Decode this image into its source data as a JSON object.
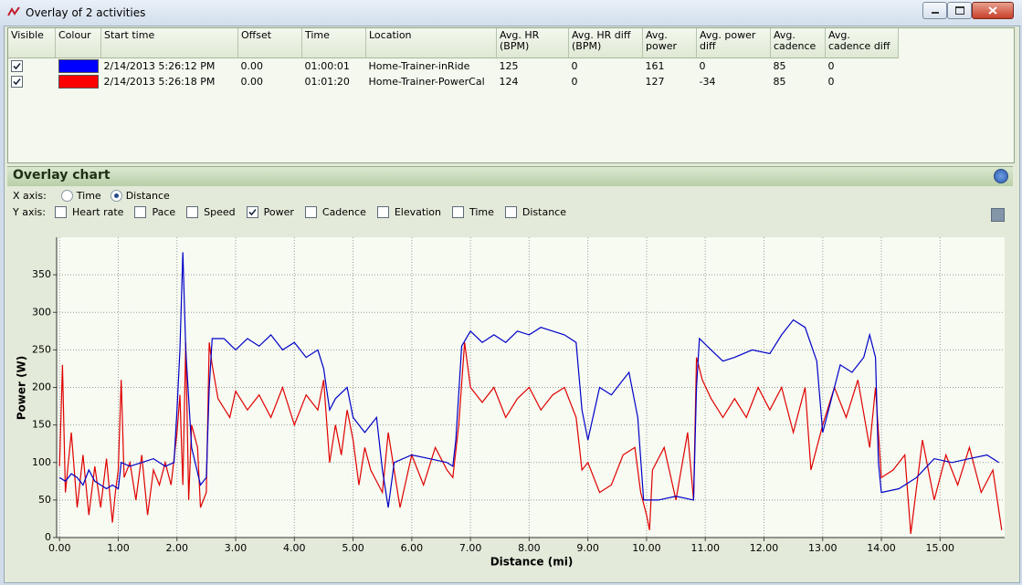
{
  "window": {
    "title": "Overlay of 2 activities"
  },
  "table": {
    "columns": [
      "Visible",
      "Colour",
      "Start time",
      "Offset",
      "Time",
      "Location",
      "Avg. HR (BPM)",
      "Avg. HR diff (BPM)",
      "Avg. power",
      "Avg. power diff",
      "Avg. cadence",
      "Avg. cadence diff"
    ],
    "rows": [
      {
        "visible": true,
        "color": "#0000ff",
        "cells": [
          "2/14/2013 5:26:12 PM",
          "0.00",
          "01:00:01",
          "Home-Trainer-inRide",
          "125",
          "0",
          "161",
          "0",
          "85",
          "0"
        ]
      },
      {
        "visible": true,
        "color": "#ff0000",
        "cells": [
          "2/14/2013 5:26:18 PM",
          "0.00",
          "01:01:20",
          "Home-Trainer-PowerCal",
          "124",
          "0",
          "127",
          "-34",
          "85",
          "0"
        ]
      }
    ]
  },
  "overlay": {
    "title": "Overlay chart",
    "x_axis": {
      "label": "X axis:",
      "options": [
        {
          "label": "Time",
          "selected": false
        },
        {
          "label": "Distance",
          "selected": true
        }
      ]
    },
    "y_axis": {
      "label": "Y axis:",
      "options": [
        {
          "label": "Heart rate",
          "checked": false
        },
        {
          "label": "Pace",
          "checked": false
        },
        {
          "label": "Speed",
          "checked": false
        },
        {
          "label": "Power",
          "checked": true
        },
        {
          "label": "Cadence",
          "checked": false
        },
        {
          "label": "Elevation",
          "checked": false
        },
        {
          "label": "Time",
          "checked": false
        },
        {
          "label": "Distance",
          "checked": false
        }
      ]
    }
  },
  "chart_data": {
    "type": "line",
    "x_label": "Distance (mi)",
    "y_label": "Power (W)",
    "xlim": [
      -0.05,
      16.1
    ],
    "ylim": [
      0,
      400
    ],
    "xticks": [
      {
        "value": 0,
        "label": "0.00"
      },
      {
        "value": 1,
        "label": "1.00"
      },
      {
        "value": 2,
        "label": "2.00"
      },
      {
        "value": 3,
        "label": "3.00"
      },
      {
        "value": 4,
        "label": "4.00"
      },
      {
        "value": 5,
        "label": "5.00"
      },
      {
        "value": 6,
        "label": "6.00"
      },
      {
        "value": 7,
        "label": "7.00"
      },
      {
        "value": 8,
        "label": "8.00"
      },
      {
        "value": 9,
        "label": "9.00"
      },
      {
        "value": 10,
        "label": "10.00"
      },
      {
        "value": 11,
        "label": "11.00"
      },
      {
        "value": 12,
        "label": "12.00"
      },
      {
        "value": 13,
        "label": "13.00"
      },
      {
        "value": 14,
        "label": "14.00"
      },
      {
        "value": 15,
        "label": "15.00"
      }
    ],
    "yticks": [
      0,
      50,
      100,
      150,
      200,
      250,
      300,
      350
    ],
    "grid": true,
    "series": [
      {
        "color": "#0000c8",
        "x": [
          0.0,
          0.1,
          0.2,
          0.3,
          0.4,
          0.5,
          0.6,
          0.7,
          0.8,
          0.9,
          1.0,
          1.05,
          1.2,
          1.4,
          1.6,
          1.8,
          1.95,
          2.0,
          2.05,
          2.1,
          2.15,
          2.25,
          2.4,
          2.5,
          2.55,
          2.6,
          2.8,
          3.0,
          3.2,
          3.4,
          3.6,
          3.8,
          4.0,
          4.2,
          4.4,
          4.5,
          4.6,
          4.7,
          4.9,
          5.0,
          5.2,
          5.4,
          5.5,
          5.6,
          5.7,
          6.0,
          6.3,
          6.6,
          6.7,
          6.75,
          6.85,
          7.0,
          7.2,
          7.4,
          7.6,
          7.8,
          8.0,
          8.2,
          8.4,
          8.6,
          8.8,
          8.9,
          9.0,
          9.2,
          9.4,
          9.6,
          9.7,
          9.85,
          9.95,
          10.2,
          10.5,
          10.8,
          10.85,
          10.9,
          11.1,
          11.3,
          11.5,
          11.8,
          12.1,
          12.3,
          12.5,
          12.7,
          12.9,
          13.0,
          13.1,
          13.3,
          13.5,
          13.7,
          13.8,
          13.9,
          13.95,
          14.0,
          14.3,
          14.6,
          14.9,
          15.2,
          15.5,
          15.8,
          16.0
        ],
        "values": [
          80,
          75,
          85,
          80,
          70,
          90,
          75,
          70,
          65,
          70,
          65,
          100,
          95,
          100,
          105,
          95,
          100,
          170,
          250,
          380,
          250,
          120,
          70,
          80,
          200,
          265,
          265,
          250,
          265,
          255,
          270,
          250,
          260,
          240,
          250,
          225,
          170,
          185,
          200,
          160,
          140,
          160,
          90,
          40,
          100,
          110,
          105,
          100,
          95,
          130,
          255,
          275,
          260,
          270,
          260,
          275,
          270,
          280,
          275,
          270,
          260,
          170,
          130,
          200,
          190,
          210,
          220,
          160,
          50,
          50,
          55,
          50,
          200,
          265,
          250,
          235,
          240,
          250,
          245,
          270,
          290,
          280,
          235,
          140,
          170,
          230,
          220,
          240,
          270,
          240,
          100,
          60,
          65,
          80,
          105,
          100,
          105,
          110,
          100
        ]
      },
      {
        "color": "#e00000",
        "x": [
          0.0,
          0.05,
          0.1,
          0.2,
          0.3,
          0.4,
          0.5,
          0.6,
          0.7,
          0.8,
          0.9,
          0.95,
          1.0,
          1.05,
          1.1,
          1.2,
          1.3,
          1.4,
          1.5,
          1.6,
          1.7,
          1.8,
          1.9,
          2.0,
          2.05,
          2.1,
          2.15,
          2.2,
          2.25,
          2.35,
          2.4,
          2.5,
          2.55,
          2.6,
          2.7,
          2.9,
          3.0,
          3.2,
          3.4,
          3.6,
          3.8,
          4.0,
          4.2,
          4.4,
          4.5,
          4.6,
          4.7,
          4.8,
          4.9,
          5.0,
          5.1,
          5.2,
          5.3,
          5.5,
          5.6,
          5.8,
          6.0,
          6.2,
          6.4,
          6.6,
          6.7,
          6.8,
          6.9,
          7.0,
          7.2,
          7.4,
          7.6,
          7.8,
          8.0,
          8.2,
          8.4,
          8.6,
          8.8,
          8.9,
          9.0,
          9.2,
          9.4,
          9.6,
          9.8,
          9.9,
          10.0,
          10.05,
          10.1,
          10.3,
          10.5,
          10.7,
          10.8,
          10.85,
          10.95,
          11.1,
          11.3,
          11.5,
          11.7,
          11.9,
          12.1,
          12.3,
          12.5,
          12.7,
          12.8,
          13.0,
          13.2,
          13.4,
          13.6,
          13.8,
          13.9,
          14.0,
          14.2,
          14.4,
          14.5,
          14.7,
          14.9,
          15.1,
          15.3,
          15.5,
          15.7,
          15.9,
          16.05
        ],
        "values": [
          95,
          230,
          60,
          140,
          40,
          110,
          30,
          95,
          40,
          105,
          20,
          60,
          90,
          210,
          80,
          100,
          50,
          110,
          30,
          90,
          70,
          100,
          70,
          140,
          190,
          70,
          260,
          50,
          150,
          120,
          40,
          60,
          260,
          230,
          185,
          160,
          195,
          170,
          190,
          160,
          200,
          150,
          190,
          170,
          210,
          100,
          150,
          110,
          170,
          130,
          70,
          120,
          90,
          60,
          140,
          40,
          110,
          70,
          120,
          90,
          80,
          150,
          260,
          200,
          180,
          200,
          160,
          185,
          200,
          170,
          190,
          200,
          160,
          90,
          100,
          60,
          70,
          110,
          120,
          60,
          30,
          10,
          90,
          120,
          50,
          140,
          50,
          240,
          210,
          185,
          160,
          185,
          160,
          200,
          170,
          200,
          140,
          200,
          90,
          150,
          200,
          160,
          210,
          120,
          200,
          80,
          90,
          110,
          5,
          130,
          50,
          110,
          70,
          120,
          60,
          90,
          10
        ]
      }
    ]
  }
}
